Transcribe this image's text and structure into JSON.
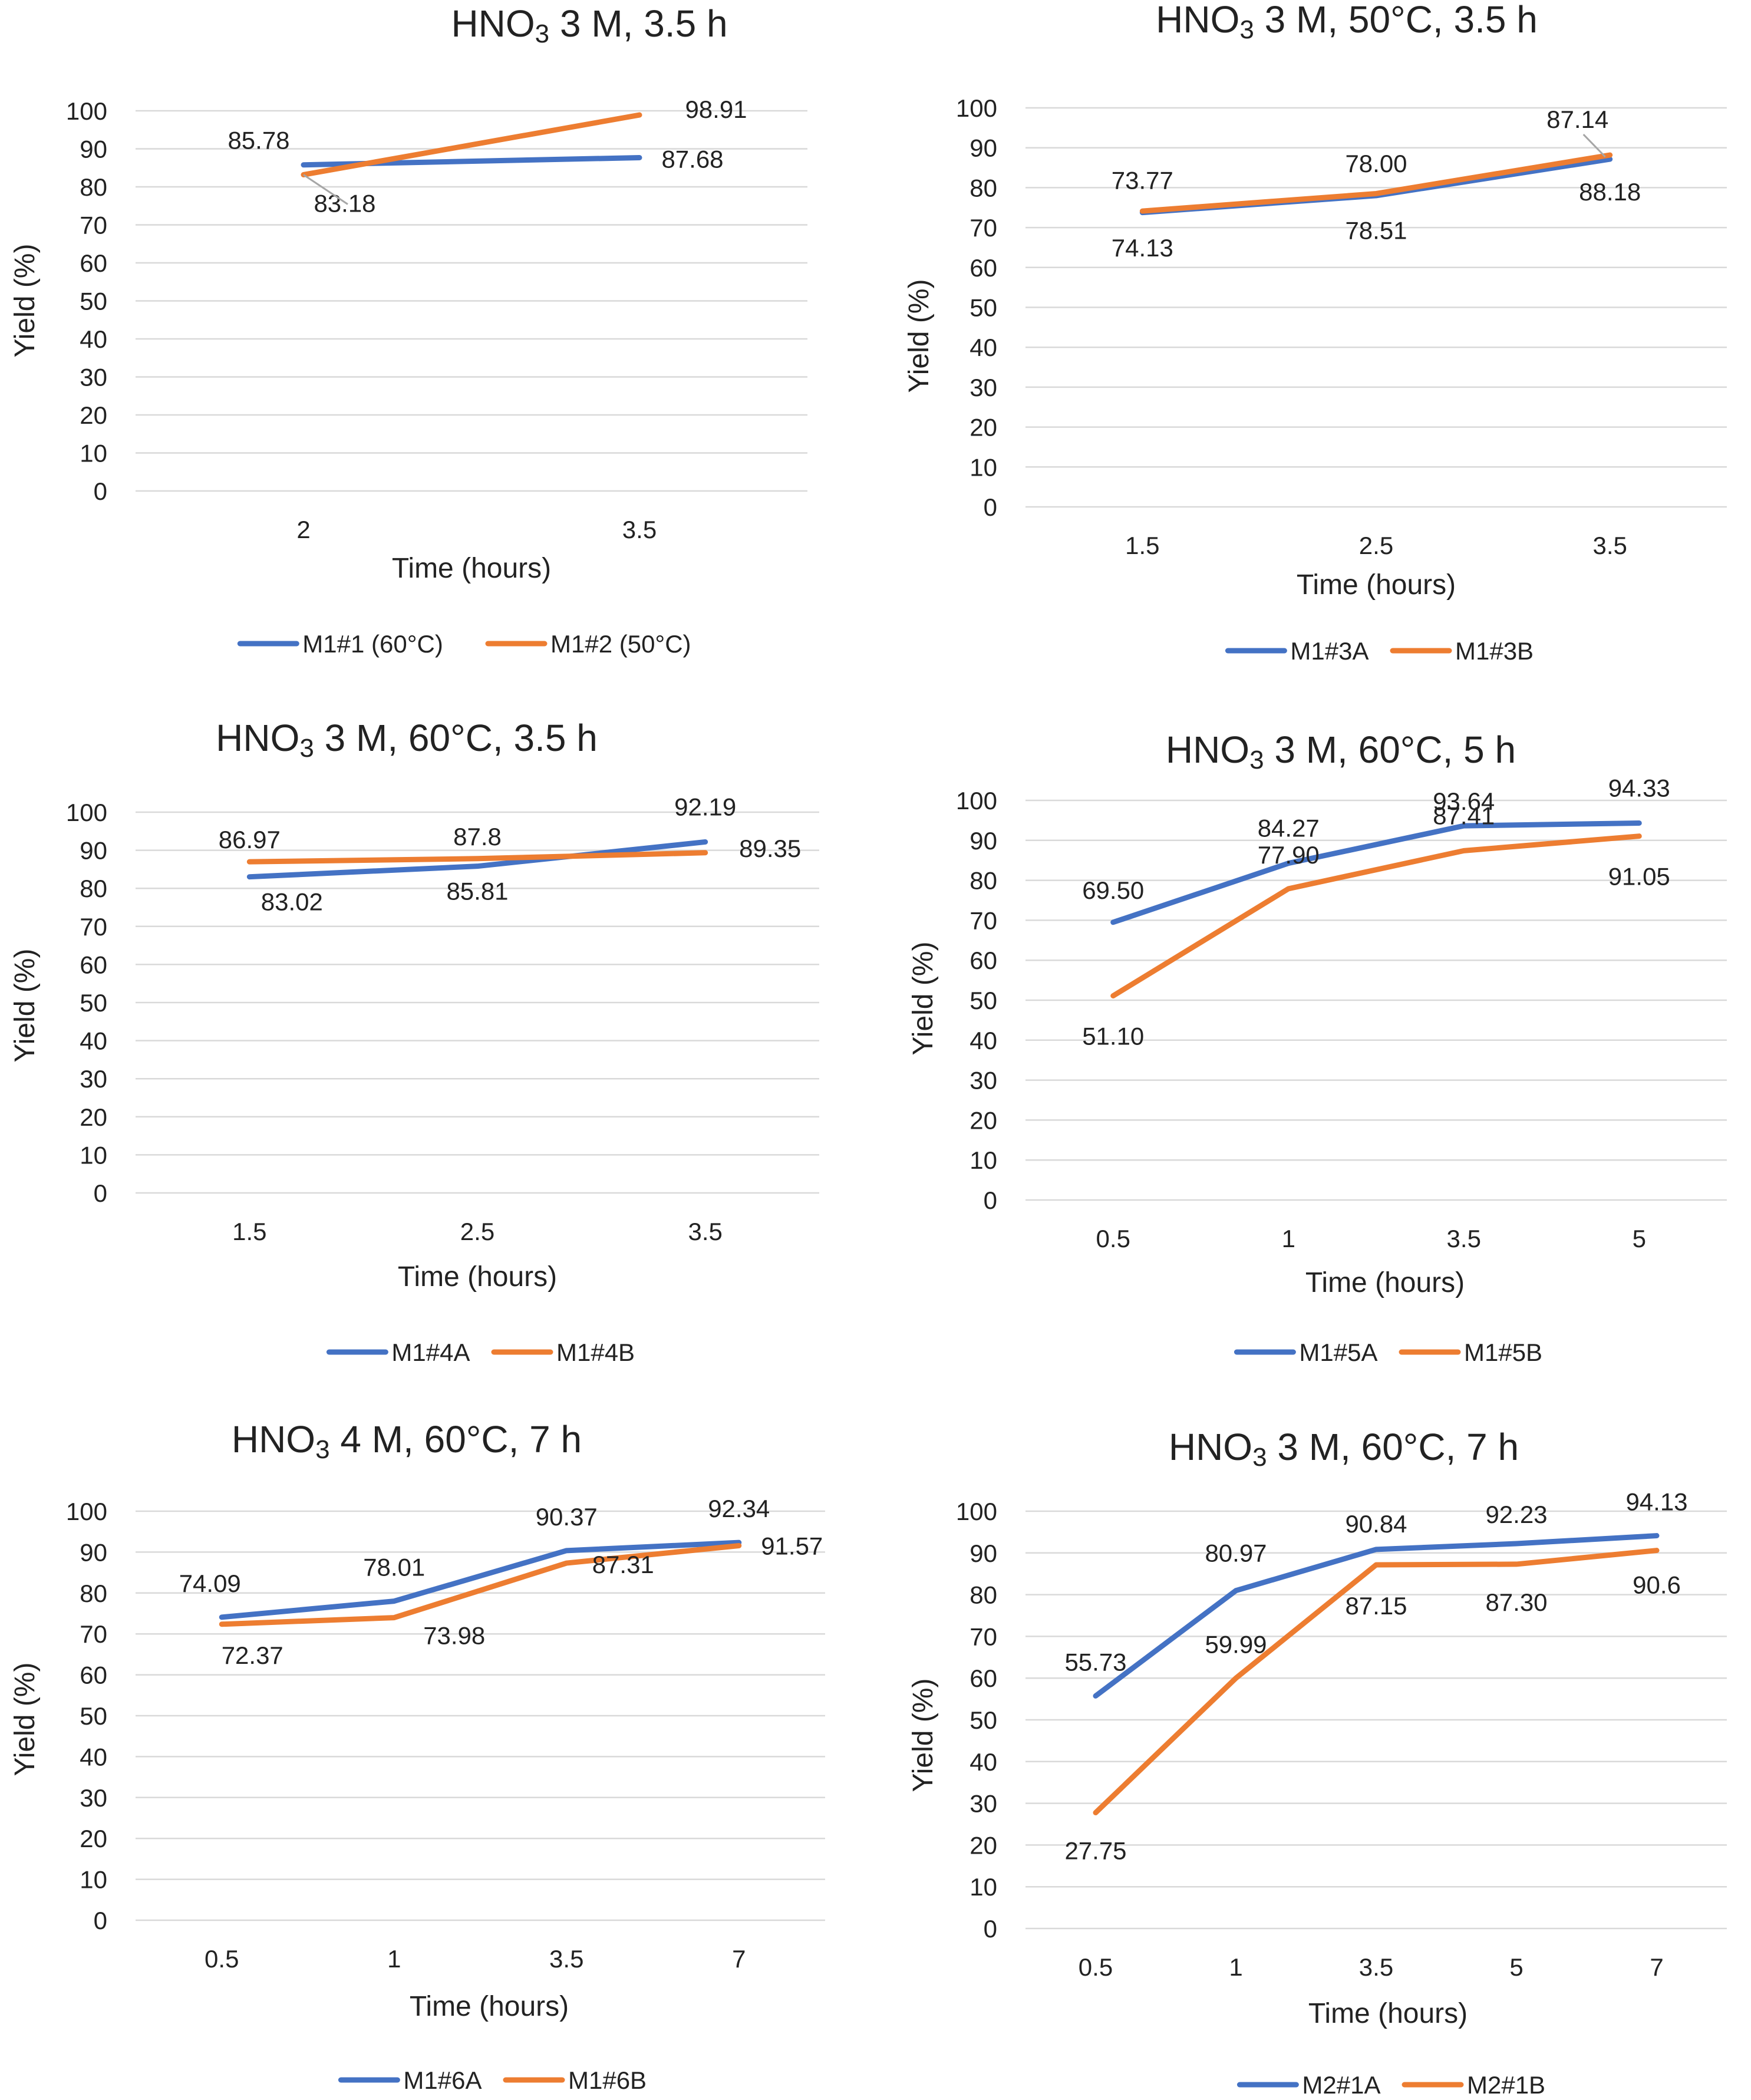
{
  "colors": {
    "series_a": "#4472C4",
    "series_b": "#ED7D31",
    "grid": "#D9D9D9",
    "text": "#222222"
  },
  "chart_data": [
    {
      "type": "line",
      "title_prefix": "HNO",
      "title_sub": "3",
      "title_suffix": " 3 M, 3.5 h",
      "categories": [
        "2",
        "3.5"
      ],
      "xlabel": "Time (hours)",
      "ylabel": "Yield (%)",
      "ylim": [
        0,
        100
      ],
      "yticks": [
        0,
        10,
        20,
        30,
        40,
        50,
        60,
        70,
        80,
        90,
        100
      ],
      "legend_position": "bottom",
      "series": [
        {
          "name": "M1#1 (60°C)",
          "values": [
            85.78,
            87.68
          ],
          "labels": [
            "85.78",
            "87.68"
          ]
        },
        {
          "name": "M1#2 (50°C)",
          "values": [
            83.18,
            98.91
          ],
          "labels": [
            "83.18",
            "98.91"
          ]
        }
      ]
    },
    {
      "type": "line",
      "title_prefix": "HNO",
      "title_sub": "3",
      "title_suffix": " 3 M, 50°C, 3.5 h",
      "categories": [
        "1.5",
        "2.5",
        "3.5"
      ],
      "xlabel": "Time (hours)",
      "ylabel": "Yield (%)",
      "ylim": [
        0,
        100
      ],
      "yticks": [
        0,
        10,
        20,
        30,
        40,
        50,
        60,
        70,
        80,
        90,
        100
      ],
      "legend_position": "bottom",
      "series": [
        {
          "name": "M1#3A",
          "values": [
            73.77,
            78.0,
            87.14
          ],
          "labels": [
            "73.77",
            "78.00",
            "87.14"
          ]
        },
        {
          "name": "M1#3B",
          "values": [
            74.13,
            78.51,
            88.18
          ],
          "labels": [
            "74.13",
            "78.51",
            "88.18"
          ]
        }
      ]
    },
    {
      "type": "line",
      "title_prefix": "HNO",
      "title_sub": "3",
      "title_suffix": " 3 M, 60°C, 3.5 h",
      "categories": [
        "1.5",
        "2.5",
        "3.5"
      ],
      "xlabel": "Time (hours)",
      "ylabel": "Yield (%)",
      "ylim": [
        0,
        100
      ],
      "yticks": [
        0,
        10,
        20,
        30,
        40,
        50,
        60,
        70,
        80,
        90,
        100
      ],
      "legend_position": "bottom",
      "series": [
        {
          "name": "M1#4A",
          "values": [
            83.02,
            85.81,
            92.19
          ],
          "labels": [
            "83.02",
            "85.81",
            "92.19"
          ]
        },
        {
          "name": "M1#4B",
          "values": [
            86.97,
            87.8,
            89.35
          ],
          "labels": [
            "86.97",
            "87.8",
            "89.35"
          ]
        }
      ]
    },
    {
      "type": "line",
      "title_prefix": "HNO",
      "title_sub": "3",
      "title_suffix": " 3 M, 60°C, 5 h",
      "categories": [
        "0.5",
        "1",
        "3.5",
        "5"
      ],
      "xlabel": "Time (hours)",
      "ylabel": "Yield (%)",
      "ylim": [
        0,
        100
      ],
      "yticks": [
        0,
        10,
        20,
        30,
        40,
        50,
        60,
        70,
        80,
        90,
        100
      ],
      "legend_position": "bottom",
      "series": [
        {
          "name": "M1#5A",
          "values": [
            69.5,
            84.27,
            93.64,
            94.33
          ],
          "labels": [
            "69.50",
            "84.27",
            "93.64",
            "94.33"
          ]
        },
        {
          "name": "M1#5B",
          "values": [
            51.1,
            77.9,
            87.41,
            91.05
          ],
          "labels": [
            "51.10",
            "77.90",
            "87.41",
            "91.05"
          ]
        }
      ]
    },
    {
      "type": "line",
      "title_prefix": "HNO",
      "title_sub": "3",
      "title_suffix": " 4 M, 60°C, 7 h",
      "categories": [
        "0.5",
        "1",
        "3.5",
        "7"
      ],
      "xlabel": "Time (hours)",
      "ylabel": "Yield (%)",
      "ylim": [
        0,
        100
      ],
      "yticks": [
        0,
        10,
        20,
        30,
        40,
        50,
        60,
        70,
        80,
        90,
        100
      ],
      "legend_position": "bottom",
      "series": [
        {
          "name": "M1#6A",
          "values": [
            74.09,
            78.01,
            90.37,
            92.34
          ],
          "labels": [
            "74.09",
            "78.01",
            "90.37",
            "92.34"
          ]
        },
        {
          "name": "M1#6B",
          "values": [
            72.37,
            73.98,
            87.31,
            91.57
          ],
          "labels": [
            "72.37",
            "73.98",
            "87.31",
            "91.57"
          ]
        }
      ]
    },
    {
      "type": "line",
      "title_prefix": "HNO",
      "title_sub": "3",
      "title_suffix": " 3 M, 60°C, 7 h",
      "categories": [
        "0.5",
        "1",
        "3.5",
        "5",
        "7"
      ],
      "xlabel": "Time (hours)",
      "ylabel": "Yield (%)",
      "ylim": [
        0,
        100
      ],
      "yticks": [
        0,
        10,
        20,
        30,
        40,
        50,
        60,
        70,
        80,
        90,
        100
      ],
      "legend_position": "bottom",
      "series": [
        {
          "name": "M2#1A",
          "values": [
            55.73,
            80.97,
            90.84,
            92.23,
            94.13
          ],
          "labels": [
            "55.73",
            "80.97",
            "90.84",
            "92.23",
            "94.13"
          ]
        },
        {
          "name": "M2#1B",
          "values": [
            27.75,
            59.99,
            87.15,
            87.3,
            90.6
          ],
          "labels": [
            "27.75",
            "59.99",
            "87.15",
            "87.30",
            "90.6"
          ]
        }
      ]
    }
  ]
}
